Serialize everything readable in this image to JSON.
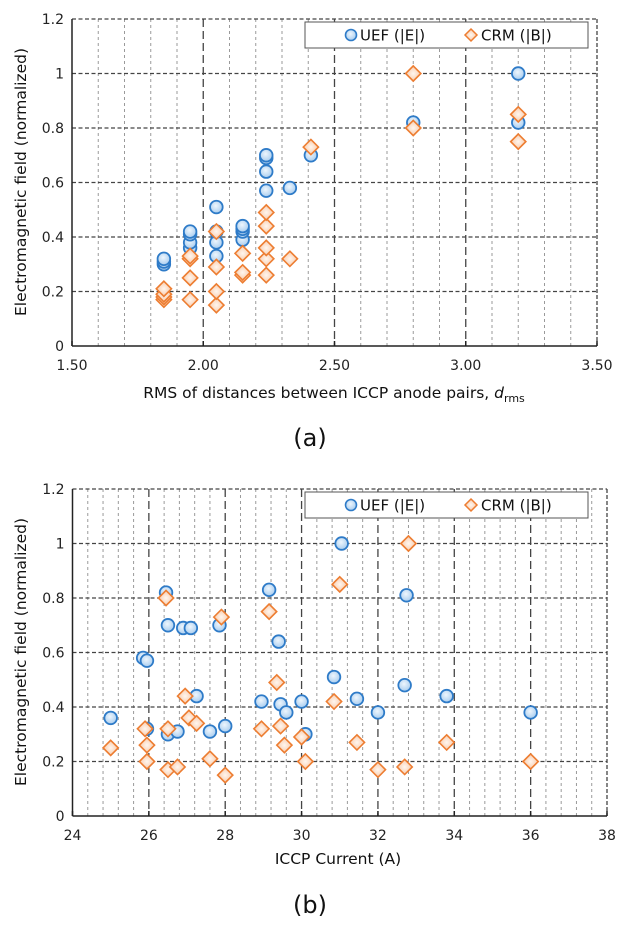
{
  "colors": {
    "uef_stroke": "#2e7bc8",
    "uef_fill_inner": "#e6f1fb",
    "uef_fill_outer": "#a9cdef",
    "crm_stroke": "#ed7d31",
    "crm_fill_inner": "#fff3ea",
    "crm_fill_outer": "#f7c39e",
    "grid_major": "#444444",
    "grid_minor": "#9a9a9a",
    "axis": "#222222"
  },
  "chart_data": [
    {
      "id": "a",
      "type": "scatter",
      "caption": "(a)",
      "title": "",
      "xlabel": "RMS of distances between ICCP anode pairs, ",
      "xlabel_italic": "d",
      "xlabel_sub": "rms",
      "ylabel": "Electromagnetic field (normalized)",
      "xlim": [
        1.5,
        3.5
      ],
      "ylim": [
        0,
        1.2
      ],
      "xticks": [
        "1.50",
        "2.00",
        "2.50",
        "3.00",
        "3.50"
      ],
      "yticks": [
        "0",
        "0.2",
        "0.4",
        "0.6",
        "0.8",
        "1",
        "1.2"
      ],
      "grid": true,
      "legend_position": "top-right",
      "series": [
        {
          "name": "UEF (|E|)",
          "marker": "circle",
          "points": [
            [
              1.85,
              0.3
            ],
            [
              1.85,
              0.31
            ],
            [
              1.85,
              0.32
            ],
            [
              1.95,
              0.36
            ],
            [
              1.95,
              0.38
            ],
            [
              1.95,
              0.41
            ],
            [
              1.95,
              0.42
            ],
            [
              2.05,
              0.33
            ],
            [
              2.05,
              0.38
            ],
            [
              2.05,
              0.42
            ],
            [
              2.05,
              0.51
            ],
            [
              2.15,
              0.39
            ],
            [
              2.15,
              0.42
            ],
            [
              2.15,
              0.43
            ],
            [
              2.15,
              0.44
            ],
            [
              2.24,
              0.57
            ],
            [
              2.24,
              0.64
            ],
            [
              2.24,
              0.69
            ],
            [
              2.24,
              0.7
            ],
            [
              2.33,
              0.58
            ],
            [
              2.41,
              0.7
            ],
            [
              2.8,
              0.82
            ],
            [
              3.2,
              0.82
            ],
            [
              3.2,
              1.0
            ]
          ]
        },
        {
          "name": "CRM (|B|)",
          "marker": "diamond",
          "points": [
            [
              1.85,
              0.17
            ],
            [
              1.85,
              0.18
            ],
            [
              1.85,
              0.19
            ],
            [
              1.85,
              0.21
            ],
            [
              1.95,
              0.17
            ],
            [
              1.95,
              0.25
            ],
            [
              1.95,
              0.32
            ],
            [
              1.95,
              0.33
            ],
            [
              2.05,
              0.15
            ],
            [
              2.05,
              0.2
            ],
            [
              2.05,
              0.29
            ],
            [
              2.05,
              0.42
            ],
            [
              2.15,
              0.26
            ],
            [
              2.15,
              0.27
            ],
            [
              2.15,
              0.34
            ],
            [
              2.24,
              0.26
            ],
            [
              2.24,
              0.32
            ],
            [
              2.24,
              0.36
            ],
            [
              2.24,
              0.44
            ],
            [
              2.24,
              0.49
            ],
            [
              2.33,
              0.32
            ],
            [
              2.41,
              0.73
            ],
            [
              2.8,
              0.8
            ],
            [
              2.8,
              1.0
            ],
            [
              3.2,
              0.75
            ],
            [
              3.2,
              0.85
            ]
          ]
        }
      ]
    },
    {
      "id": "b",
      "type": "scatter",
      "caption": "(b)",
      "title": "",
      "xlabel": "ICCP Current (A)",
      "xlabel_italic": "",
      "xlabel_sub": "",
      "ylabel": "Electromagnetic field (normalized)",
      "xlim": [
        24,
        38
      ],
      "ylim": [
        0,
        1.2
      ],
      "xticks": [
        "24",
        "26",
        "28",
        "30",
        "32",
        "34",
        "36",
        "38"
      ],
      "yticks": [
        "0",
        "0.2",
        "0.4",
        "0.6",
        "0.8",
        "1",
        "1.2"
      ],
      "grid": true,
      "legend_position": "top-right",
      "series": [
        {
          "name": "UEF (|E|)",
          "marker": "circle",
          "points": [
            [
              25.0,
              0.36
            ],
            [
              25.85,
              0.58
            ],
            [
              25.95,
              0.57
            ],
            [
              25.95,
              0.32
            ],
            [
              26.45,
              0.82
            ],
            [
              26.5,
              0.7
            ],
            [
              26.5,
              0.3
            ],
            [
              26.75,
              0.31
            ],
            [
              26.9,
              0.69
            ],
            [
              27.1,
              0.69
            ],
            [
              27.25,
              0.44
            ],
            [
              27.6,
              0.31
            ],
            [
              27.85,
              0.7
            ],
            [
              28.0,
              0.33
            ],
            [
              28.95,
              0.42
            ],
            [
              29.15,
              0.83
            ],
            [
              29.4,
              0.64
            ],
            [
              29.45,
              0.41
            ],
            [
              29.6,
              0.38
            ],
            [
              30.0,
              0.42
            ],
            [
              30.1,
              0.3
            ],
            [
              30.85,
              0.51
            ],
            [
              31.05,
              1.0
            ],
            [
              31.45,
              0.43
            ],
            [
              32.0,
              0.38
            ],
            [
              32.7,
              0.48
            ],
            [
              32.75,
              0.81
            ],
            [
              33.8,
              0.44
            ],
            [
              36.0,
              0.38
            ]
          ]
        },
        {
          "name": "CRM (|B|)",
          "marker": "diamond",
          "points": [
            [
              25.0,
              0.25
            ],
            [
              25.9,
              0.32
            ],
            [
              25.95,
              0.26
            ],
            [
              25.95,
              0.2
            ],
            [
              26.45,
              0.8
            ],
            [
              26.5,
              0.17
            ],
            [
              26.5,
              0.32
            ],
            [
              26.75,
              0.18
            ],
            [
              26.95,
              0.44
            ],
            [
              27.05,
              0.36
            ],
            [
              27.25,
              0.34
            ],
            [
              27.6,
              0.21
            ],
            [
              27.9,
              0.73
            ],
            [
              28.0,
              0.15
            ],
            [
              28.95,
              0.32
            ],
            [
              29.15,
              0.75
            ],
            [
              29.35,
              0.49
            ],
            [
              29.45,
              0.33
            ],
            [
              29.55,
              0.26
            ],
            [
              30.0,
              0.29
            ],
            [
              30.1,
              0.2
            ],
            [
              30.85,
              0.42
            ],
            [
              31.0,
              0.85
            ],
            [
              31.45,
              0.27
            ],
            [
              32.0,
              0.17
            ],
            [
              32.7,
              0.18
            ],
            [
              32.8,
              1.0
            ],
            [
              33.8,
              0.27
            ],
            [
              36.0,
              0.2
            ]
          ]
        }
      ]
    }
  ]
}
